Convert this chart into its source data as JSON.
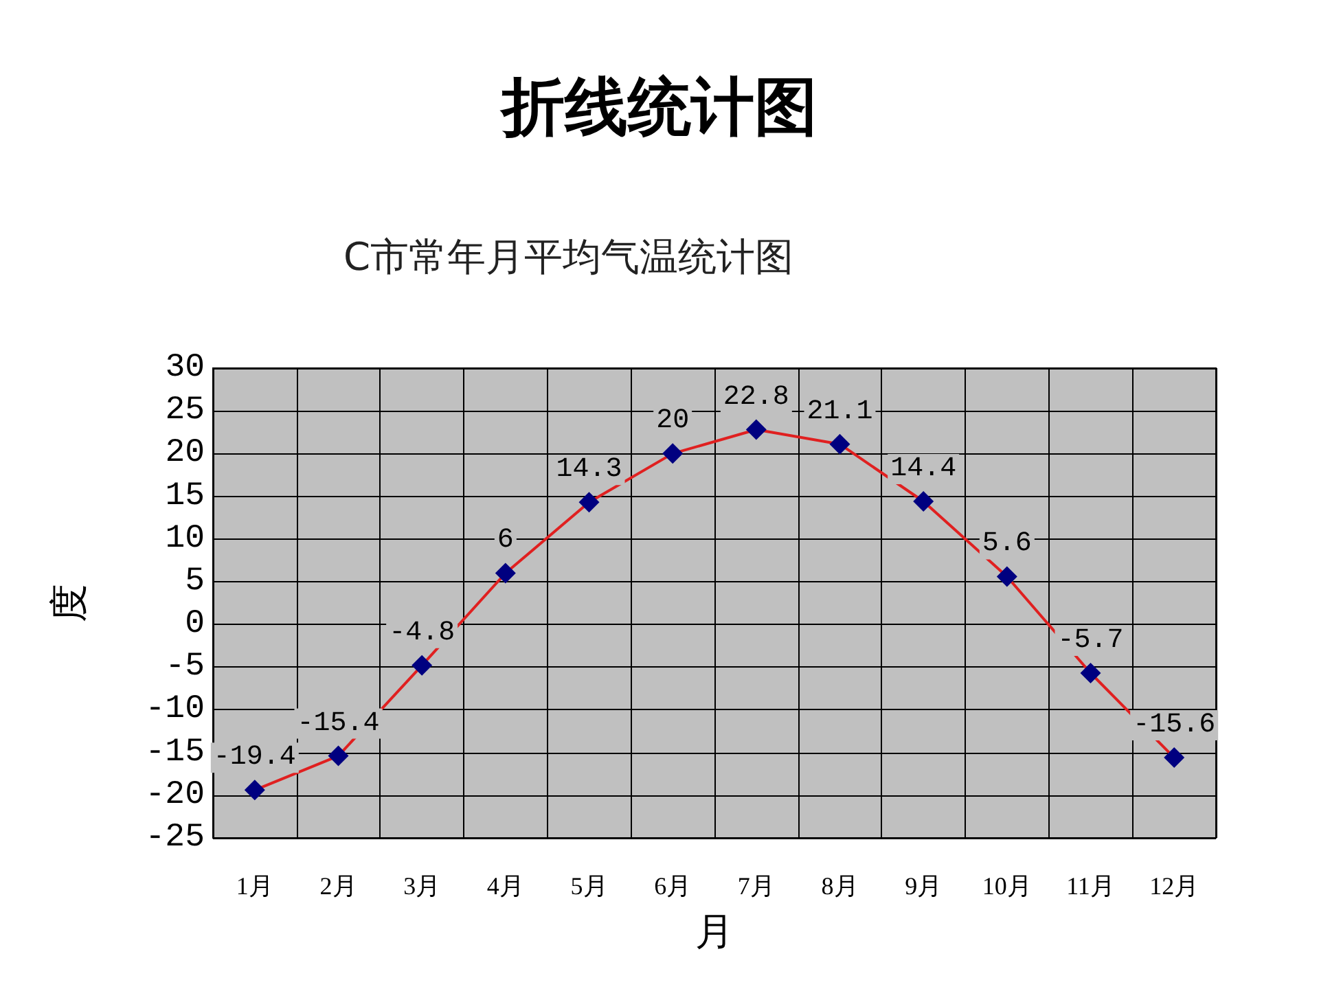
{
  "chart_data": {
    "type": "line",
    "title": "折线统计图",
    "subtitle": "C市常年月平均气温统计图",
    "xlabel": "月",
    "ylabel": "度",
    "categories": [
      "1月",
      "2月",
      "3月",
      "4月",
      "5月",
      "6月",
      "7月",
      "8月",
      "9月",
      "10月",
      "11月",
      "12月"
    ],
    "series": [
      {
        "color": "#e02020",
        "colors": [
          "#000080",
          "#000080",
          "#000080",
          "#000080",
          "#000080",
          "#000080",
          "#000080",
          "#000080",
          "#000080",
          "#000080",
          "#000080",
          "#000080"
        ],
        "values": [
          -19.4,
          -15.4,
          -4.8,
          6,
          14.3,
          20,
          22.8,
          21.1,
          14.4,
          5.6,
          -5.7,
          -15.6
        ]
      }
    ],
    "ylim": [
      -25,
      30
    ],
    "yticks": [
      -25,
      -20,
      -15,
      -10,
      -5,
      0,
      5,
      10,
      15,
      20,
      25,
      30
    ],
    "grid": true,
    "marker": "diamond",
    "line_style": "solid",
    "data_labels": true
  }
}
